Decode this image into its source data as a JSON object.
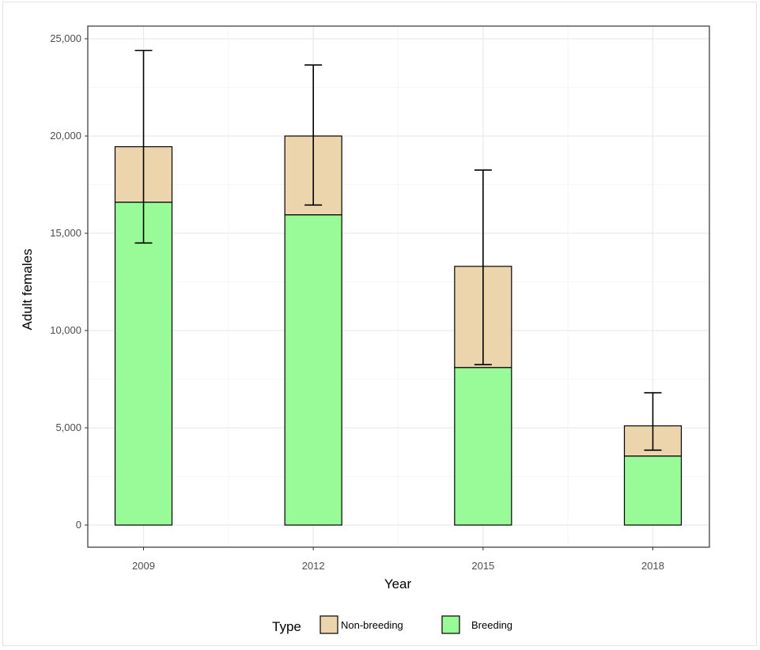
{
  "chart_data": {
    "type": "bar",
    "stacked": true,
    "categories": [
      "2009",
      "2012",
      "2015",
      "2018"
    ],
    "series": [
      {
        "name": "Breeding",
        "values": [
          16600,
          15950,
          8100,
          3550
        ],
        "color": "#98fb98"
      },
      {
        "name": "Non-breeding",
        "values": [
          2850,
          4050,
          5200,
          1550
        ],
        "color": "#ecd5ac"
      }
    ],
    "error_bars": [
      {
        "category": "2009",
        "lower": 14500,
        "upper": 24400
      },
      {
        "category": "2012",
        "lower": 16450,
        "upper": 23650
      },
      {
        "category": "2015",
        "lower": 8250,
        "upper": 18250
      },
      {
        "category": "2018",
        "lower": 3850,
        "upper": 6800
      }
    ],
    "title": "",
    "xlabel": "Year",
    "ylabel": "Adult females",
    "ylim": [
      0,
      25000
    ],
    "y_ticks": [
      0,
      5000,
      10000,
      15000,
      20000,
      25000
    ],
    "y_tick_labels": [
      "0",
      "5,000",
      "10,000",
      "15,000",
      "20,000",
      "25,000"
    ],
    "grid": true,
    "legend": {
      "title": "Type",
      "placement": "bottom",
      "entries": [
        {
          "label": "Non-breeding",
          "color": "#ecd5ac"
        },
        {
          "label": "Breeding",
          "color": "#98fb98"
        }
      ]
    }
  }
}
